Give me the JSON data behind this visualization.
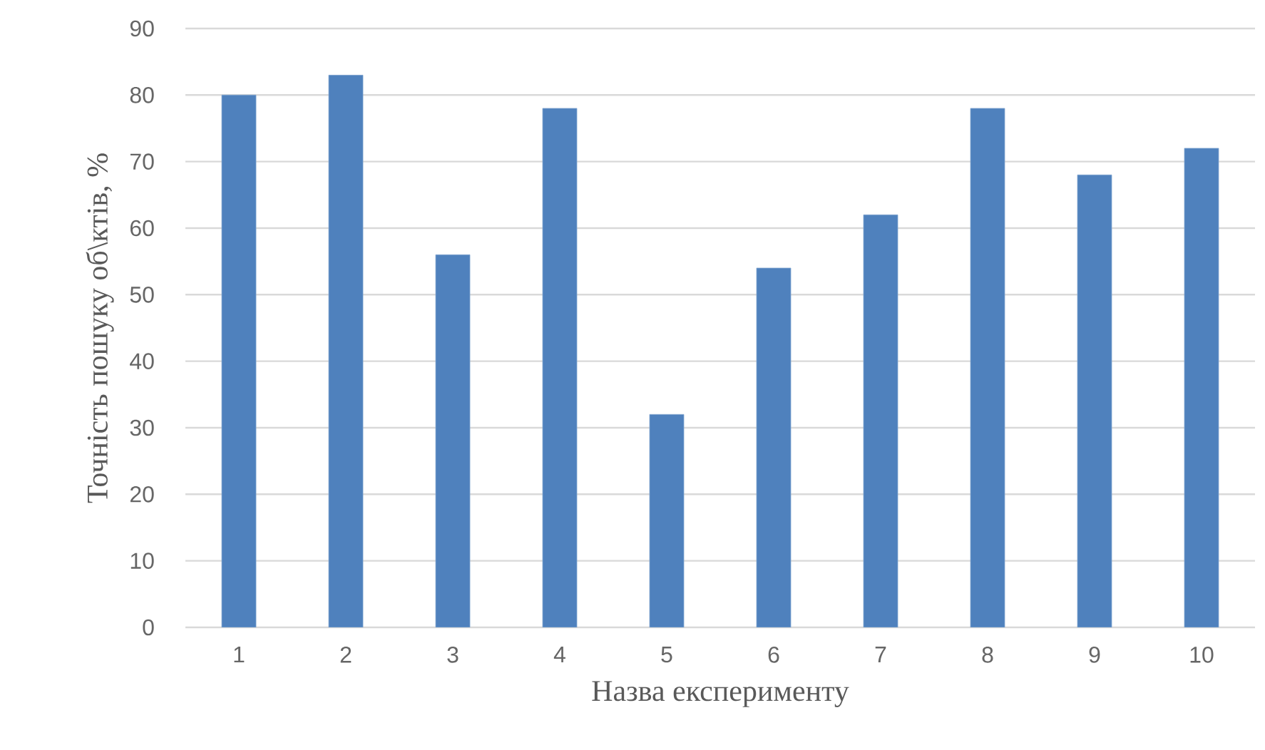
{
  "chart_data": {
    "type": "bar",
    "xlabel": "Назва експерименту",
    "ylabel": "Точність пошуку об\\ктів, %",
    "categories": [
      "1",
      "2",
      "3",
      "4",
      "5",
      "6",
      "7",
      "8",
      "9",
      "10"
    ],
    "values": [
      80,
      83,
      56,
      78,
      32,
      54,
      62,
      78,
      68,
      72
    ],
    "color": "#4f81bd",
    "ylim": [
      0,
      90
    ],
    "yticks": [
      0,
      10,
      20,
      30,
      40,
      50,
      60,
      70,
      80,
      90
    ],
    "grid": "y"
  }
}
